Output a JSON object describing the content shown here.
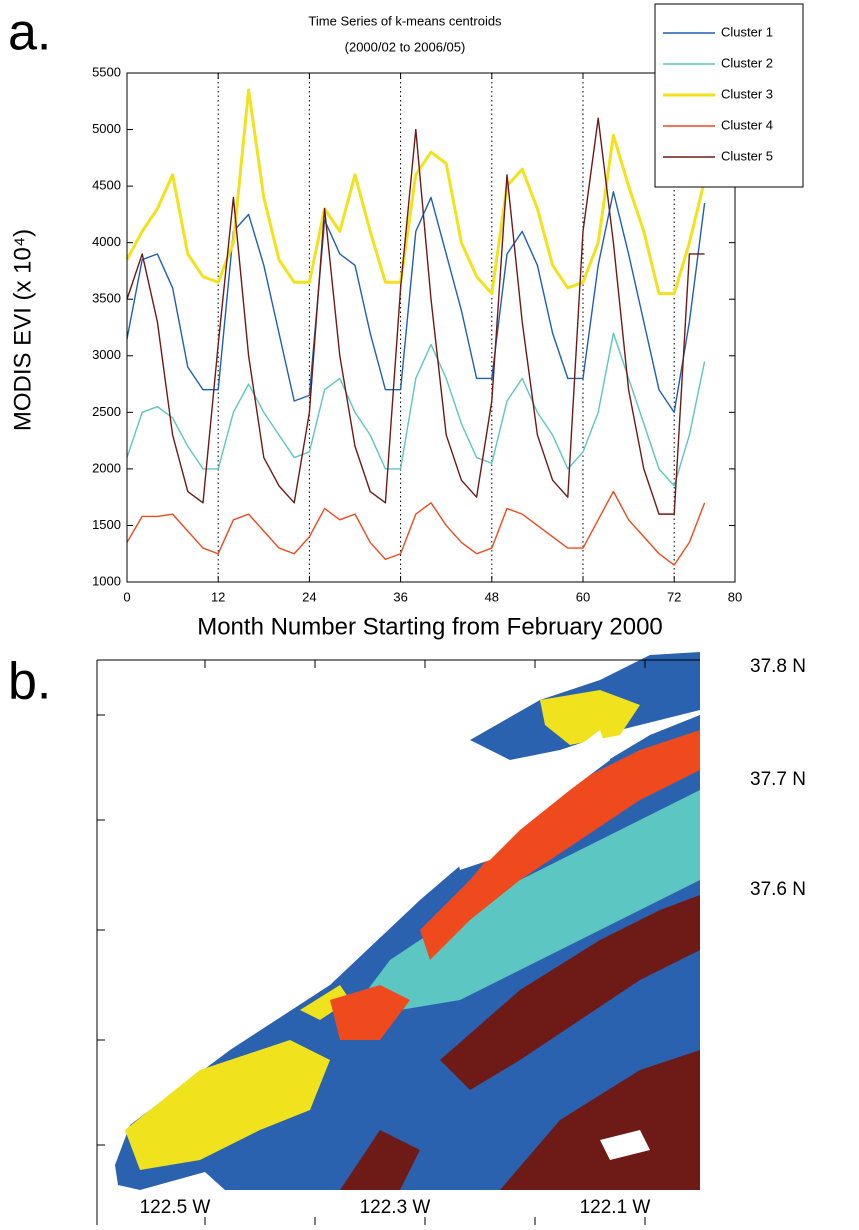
{
  "chart_data": {
    "type": "line",
    "panel_label": "a.",
    "title": "Time Series of k-means centroids",
    "subtitle": "(2000/02 to 2006/05)",
    "xlabel": "Month Number Starting from February 2000",
    "ylabel": "MODIS EVI (x 10⁴)",
    "x": [
      0,
      2,
      4,
      6,
      8,
      10,
      12,
      14,
      16,
      18,
      20,
      22,
      24,
      26,
      28,
      30,
      32,
      34,
      36,
      38,
      40,
      42,
      44,
      46,
      48,
      50,
      52,
      54,
      56,
      58,
      60,
      62,
      64,
      66,
      68,
      70,
      72,
      74,
      76
    ],
    "series": [
      {
        "name": "Cluster 1",
        "color": "#1f5fb4",
        "values": [
          3150,
          3850,
          3900,
          3600,
          2900,
          2700,
          2700,
          4100,
          4250,
          3800,
          3200,
          2600,
          2650,
          4200,
          3900,
          3800,
          3200,
          2700,
          2700,
          4100,
          4400,
          3900,
          3400,
          2800,
          2800,
          3900,
          4100,
          3800,
          3200,
          2800,
          2800,
          3800,
          4450,
          3900,
          3300,
          2700,
          2500,
          3300,
          4350
        ]
      },
      {
        "name": "Cluster 2",
        "color": "#5cc6c2",
        "values": [
          2100,
          2500,
          2550,
          2450,
          2200,
          2000,
          2000,
          2500,
          2750,
          2500,
          2300,
          2100,
          2150,
          2700,
          2800,
          2500,
          2300,
          2000,
          2000,
          2800,
          3100,
          2800,
          2400,
          2100,
          2050,
          2600,
          2800,
          2500,
          2300,
          2000,
          2150,
          2500,
          3200,
          2800,
          2400,
          2000,
          1850,
          2300,
          2950
        ]
      },
      {
        "name": "Cluster 3",
        "color": "#f2e21c",
        "values": [
          3850,
          4100,
          4300,
          4600,
          3900,
          3700,
          3650,
          4000,
          5350,
          4400,
          3850,
          3650,
          3650,
          4300,
          4100,
          4600,
          4100,
          3650,
          3650,
          4600,
          4800,
          4700,
          4000,
          3700,
          3550,
          4500,
          4650,
          4300,
          3800,
          3600,
          3650,
          4000,
          4950,
          4500,
          4100,
          3550,
          3550,
          4000,
          4550
        ]
      },
      {
        "name": "Cluster 4",
        "color": "#ef4a1e",
        "values": [
          1350,
          1580,
          1580,
          1600,
          1450,
          1300,
          1250,
          1550,
          1600,
          1450,
          1300,
          1250,
          1400,
          1650,
          1550,
          1600,
          1350,
          1200,
          1250,
          1600,
          1700,
          1500,
          1350,
          1250,
          1300,
          1650,
          1600,
          1500,
          1400,
          1300,
          1300,
          1550,
          1800,
          1550,
          1400,
          1250,
          1150,
          1350,
          1700
        ]
      },
      {
        "name": "Cluster 5",
        "color": "#6e1a16",
        "values": [
          3500,
          3900,
          3300,
          2300,
          1800,
          1700,
          3100,
          4400,
          3000,
          2100,
          1850,
          1700,
          2500,
          4300,
          3000,
          2200,
          1800,
          1700,
          3600,
          5000,
          3500,
          2300,
          1900,
          1750,
          2600,
          4600,
          3300,
          2300,
          1900,
          1750,
          4100,
          5100,
          4000,
          2700,
          2000,
          1600,
          1600,
          3900,
          3900
        ]
      }
    ],
    "xlim": [
      0,
      80
    ],
    "xticks": [
      0,
      12,
      24,
      36,
      48,
      60,
      72,
      80
    ],
    "ylim": [
      1000,
      5500
    ],
    "yticks": [
      1000,
      1500,
      2000,
      2500,
      3000,
      3500,
      4000,
      4500,
      5000,
      5500
    ],
    "xgrid": "dotted",
    "legend": "upper right"
  },
  "map": {
    "panel_label": "b.",
    "lat_labels": [
      "37.8 N",
      "37.7 N",
      "37.6 N"
    ],
    "lon_labels": [
      "122.5 W",
      "122.3 W",
      "122.1 W"
    ]
  }
}
